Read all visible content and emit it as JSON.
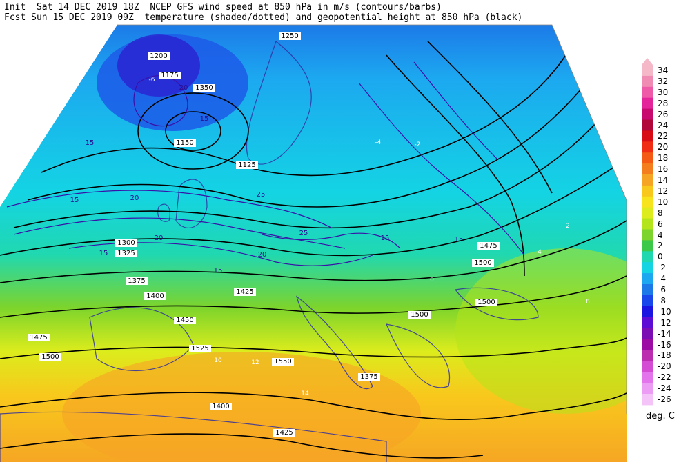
{
  "header": {
    "line1": "Init  Sat 14 DEC 2019 18Z  NCEP GFS wind speed at 850 hPa in m/s (contours/barbs)",
    "line2": "Fcst Sun 15 DEC 2019 09Z  temperature (shaded/dotted) and geopotential height at 850 hPa (black)"
  },
  "colorbar": {
    "units": "deg. C",
    "entries": [
      {
        "label": "34",
        "color": "#f4b8c8"
      },
      {
        "label": "32",
        "color": "#f08cb4"
      },
      {
        "label": "30",
        "color": "#ee5aa8"
      },
      {
        "label": "28",
        "color": "#e4249a"
      },
      {
        "label": "26",
        "color": "#c80a70"
      },
      {
        "label": "24",
        "color": "#b0063c"
      },
      {
        "label": "22",
        "color": "#d80c14"
      },
      {
        "label": "20",
        "color": "#f02c14"
      },
      {
        "label": "18",
        "color": "#f45a14"
      },
      {
        "label": "16",
        "color": "#f47e1e"
      },
      {
        "label": "14",
        "color": "#f6a424"
      },
      {
        "label": "12",
        "color": "#f8c81c"
      },
      {
        "label": "10",
        "color": "#f8e41c"
      },
      {
        "label": "8",
        "color": "#dcec1c"
      },
      {
        "label": "6",
        "color": "#b4e41c"
      },
      {
        "label": "4",
        "color": "#7cd42c"
      },
      {
        "label": "2",
        "color": "#3cc848"
      },
      {
        "label": "0",
        "color": "#20d8b0"
      },
      {
        "label": "-2",
        "color": "#14d4e4"
      },
      {
        "label": "-4",
        "color": "#1ca8f0"
      },
      {
        "label": "-6",
        "color": "#1c7ae8"
      },
      {
        "label": "-8",
        "color": "#1848ec"
      },
      {
        "label": "-10",
        "color": "#1c14e0"
      },
      {
        "label": "-12",
        "color": "#5c0cd4"
      },
      {
        "label": "-14",
        "color": "#7c0cb4"
      },
      {
        "label": "-16",
        "color": "#9c0ca4"
      },
      {
        "label": "-18",
        "color": "#bc2cb0"
      },
      {
        "label": "-20",
        "color": "#d44cd4"
      },
      {
        "label": "-22",
        "color": "#e474ec"
      },
      {
        "label": "-24",
        "color": "#ec9cf4"
      },
      {
        "label": "-26",
        "color": "#f4c4f8"
      }
    ]
  },
  "height_labels": [
    {
      "text": "1250"
    },
    {
      "text": "1175"
    },
    {
      "text": "1150"
    },
    {
      "text": "1200"
    },
    {
      "text": "1125"
    },
    {
      "text": "1350"
    },
    {
      "text": "1300"
    },
    {
      "text": "1325"
    },
    {
      "text": "1375"
    },
    {
      "text": "1400"
    },
    {
      "text": "1425"
    },
    {
      "text": "1450"
    },
    {
      "text": "1475"
    },
    {
      "text": "1500"
    },
    {
      "text": "1525"
    },
    {
      "text": "1550"
    },
    {
      "text": "1375"
    },
    {
      "text": "1400"
    },
    {
      "text": "1425"
    },
    {
      "text": "1475"
    },
    {
      "text": "1500"
    },
    {
      "text": "1500"
    },
    {
      "text": "1500"
    }
  ],
  "wind_labels": [
    {
      "text": "15"
    },
    {
      "text": "20"
    },
    {
      "text": "15"
    },
    {
      "text": "20"
    },
    {
      "text": "25"
    },
    {
      "text": "25"
    },
    {
      "text": "15"
    },
    {
      "text": "20"
    },
    {
      "text": "15"
    },
    {
      "text": "15"
    },
    {
      "text": "15"
    },
    {
      "text": "20"
    },
    {
      "text": "15"
    }
  ],
  "temp_labels": [
    {
      "text": "-4"
    },
    {
      "text": "-2"
    },
    {
      "text": "0"
    },
    {
      "text": "2"
    },
    {
      "text": "4"
    },
    {
      "text": "8"
    },
    {
      "text": "10"
    },
    {
      "text": "12"
    },
    {
      "text": "14"
    },
    {
      "text": "-6"
    }
  ],
  "colors": {
    "height_contour": "#000000",
    "wind_contour": "#3a10a8"
  }
}
